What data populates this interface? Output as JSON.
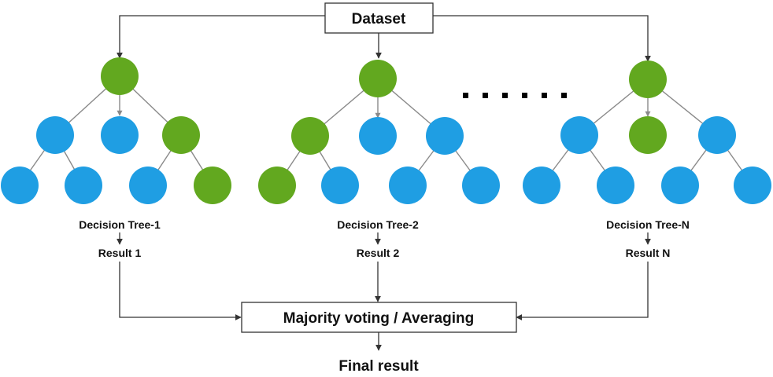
{
  "dataset": {
    "label": "Dataset"
  },
  "aggregator": {
    "label": "Majority voting / Averaging"
  },
  "final": {
    "label": "Final result"
  },
  "trees": [
    {
      "name": "Decision Tree-1",
      "result": "Result 1"
    },
    {
      "name": "Decision Tree-2",
      "result": "Result 2"
    },
    {
      "name": "Decision Tree-N",
      "result": "Result N"
    }
  ],
  "colors": {
    "green": "#62a81f",
    "blue": "#1f9ee3"
  }
}
